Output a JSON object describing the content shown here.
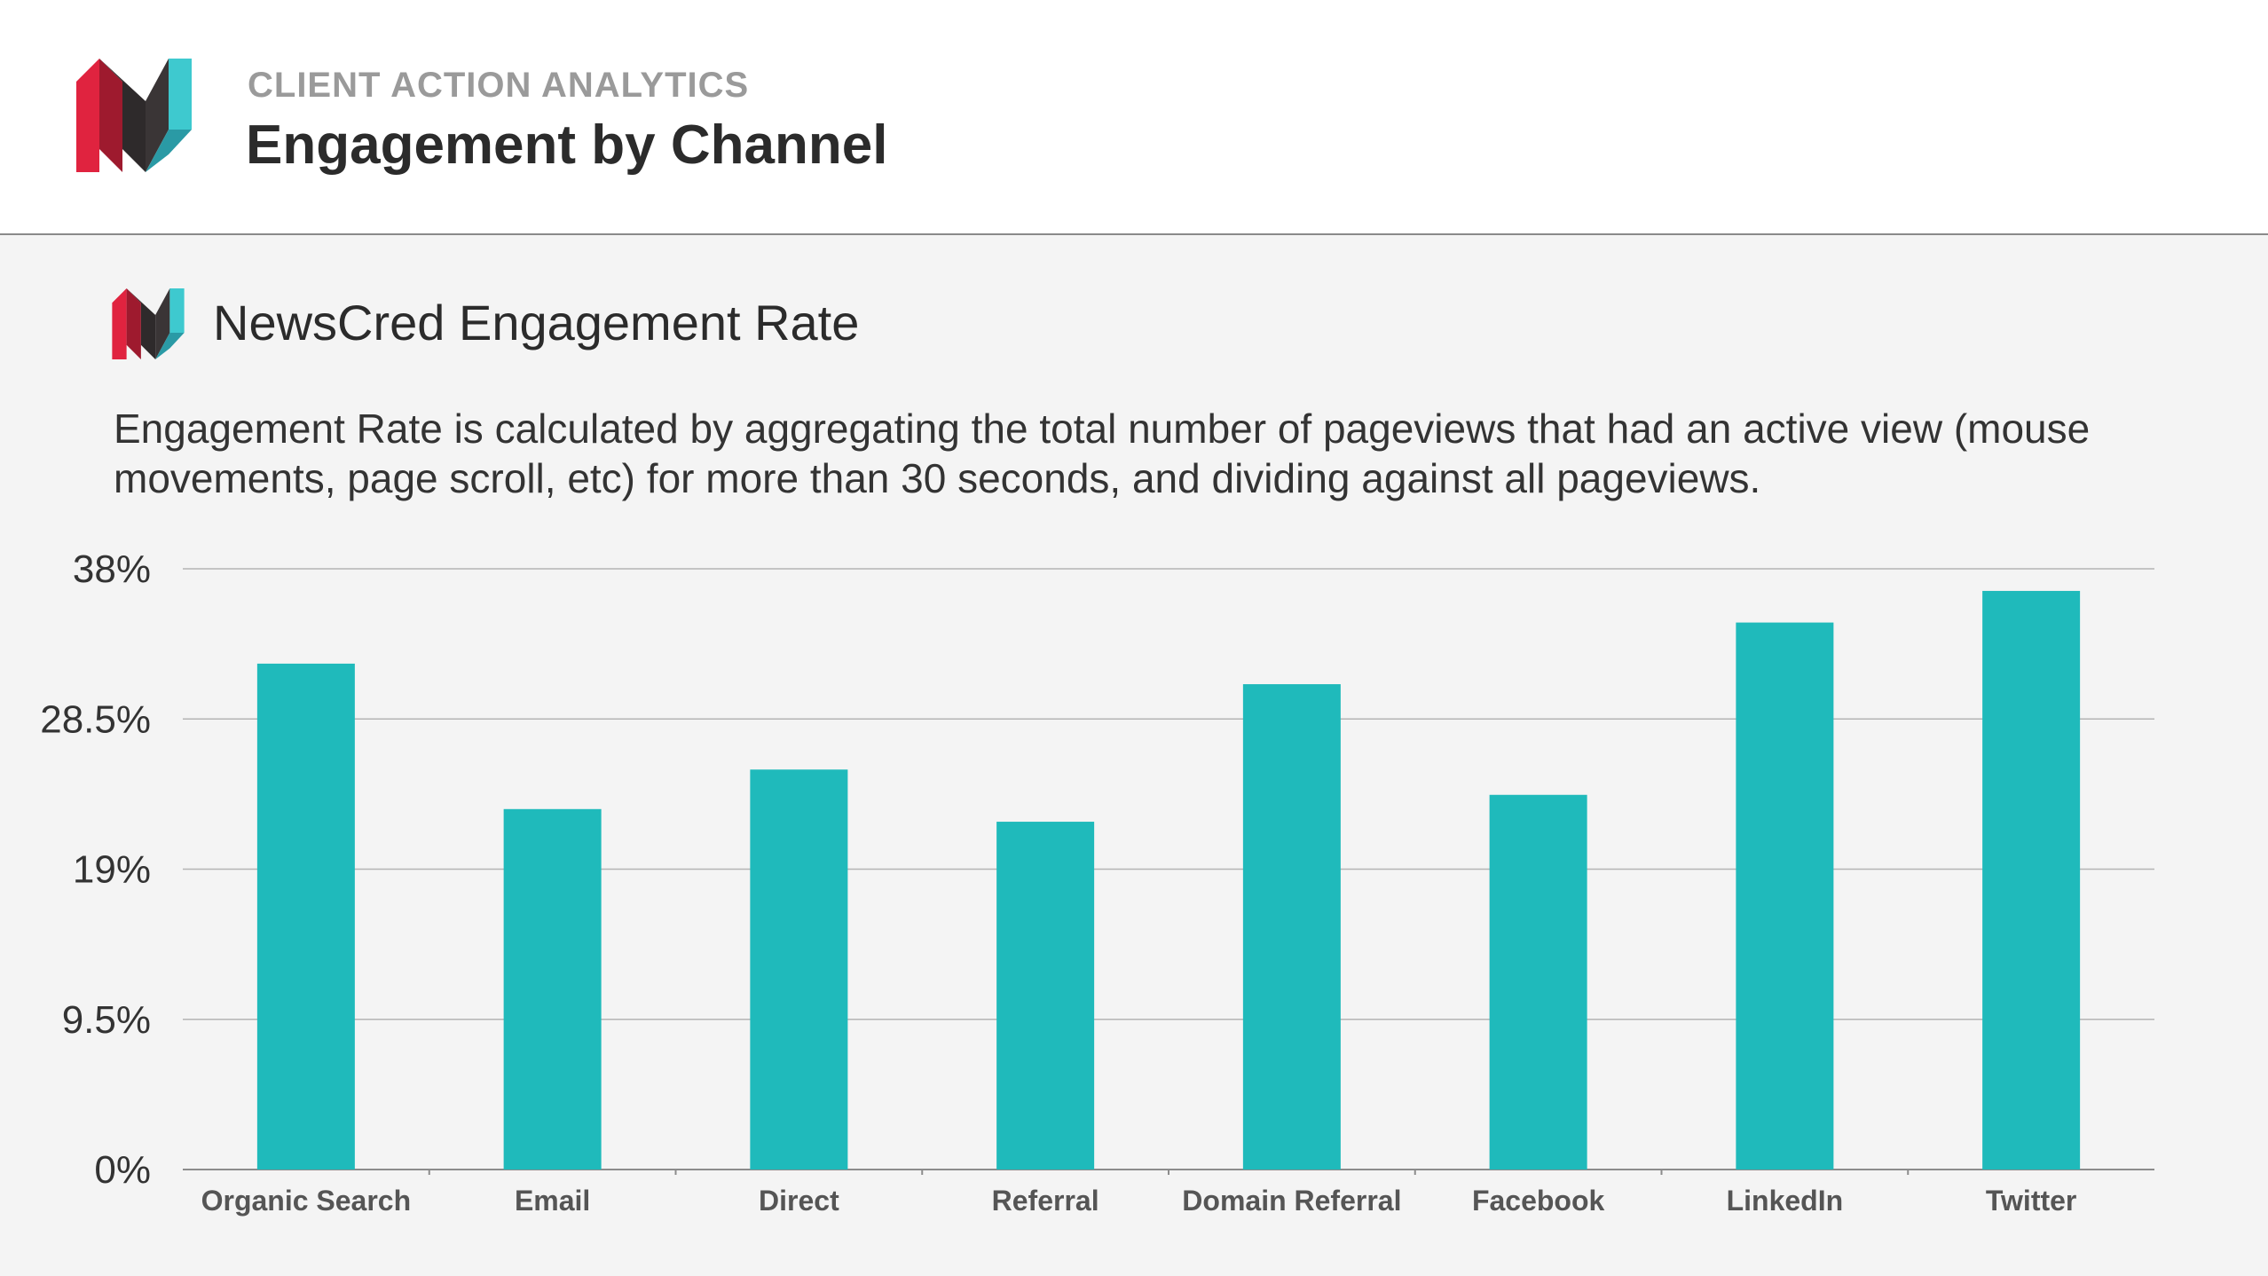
{
  "header": {
    "kicker": "CLIENT ACTION ANALYTICS",
    "title": "Engagement by Channel"
  },
  "section": {
    "title": "NewsCred Engagement Rate",
    "description": "Engagement Rate is calculated  by aggregating the total number of pageviews that had an active view (mouse movements, page scroll, etc) for more than 30 seconds, and dividing against all pageviews."
  },
  "colors": {
    "bar": "#1fbabb",
    "logo_red": "#e0233f",
    "logo_dark": "#2e2a2b",
    "logo_teal": "#3ec9cf"
  },
  "icons": {
    "header_logo": "newscred-logo-icon",
    "section_logo": "newscred-logo-icon"
  },
  "chart_data": {
    "type": "bar",
    "categories": [
      "Organic Search",
      "Email",
      "Direct",
      "Referral",
      "Domain Referral",
      "Facebook",
      "LinkedIn",
      "Twitter"
    ],
    "values": [
      32.0,
      22.8,
      25.3,
      22.0,
      30.7,
      23.7,
      34.6,
      36.6
    ],
    "yticks": [
      "0%",
      "9.5%",
      "19%",
      "28.5%",
      "38%"
    ],
    "ylim": [
      0,
      38
    ],
    "title": "",
    "xlabel": "",
    "ylabel": "",
    "grid": true,
    "legend": "none"
  }
}
